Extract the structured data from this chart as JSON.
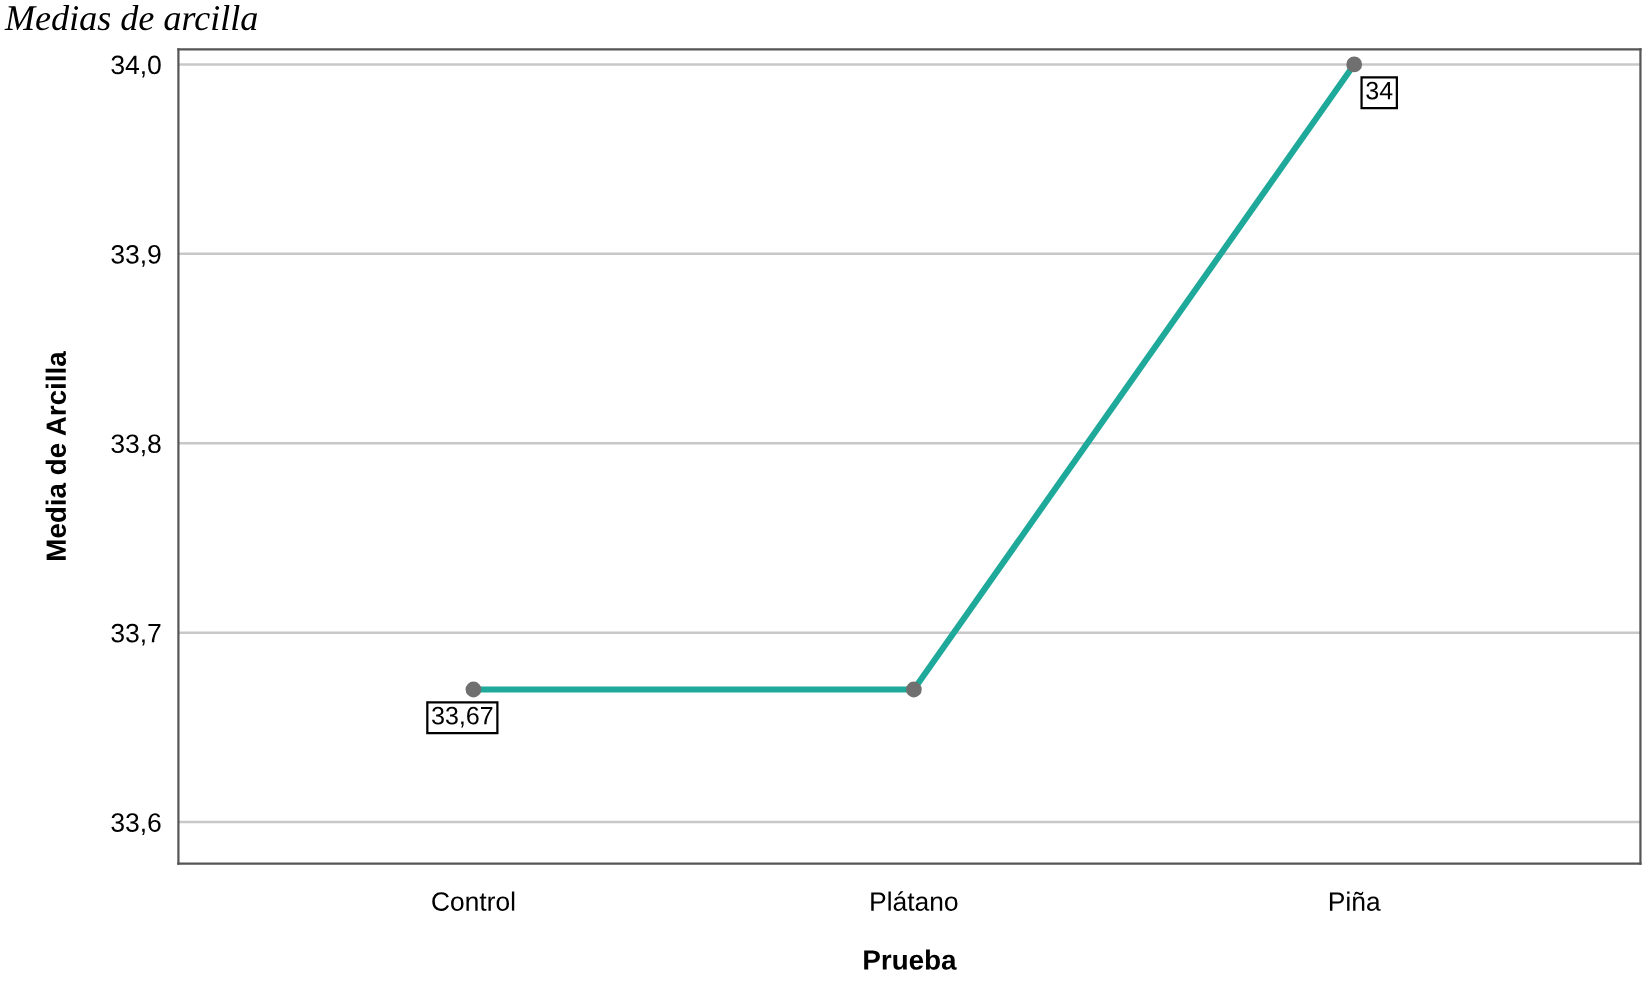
{
  "chart_data": {
    "type": "line",
    "title": "Medias de arcilla",
    "xlabel": "Prueba",
    "ylabel": "Media de Arcilla",
    "categories": [
      "Control",
      "Plátano",
      "Piña"
    ],
    "series": [
      {
        "color": "#1fa99a",
        "values": [
          33.67,
          33.67,
          34
        ],
        "value_labels": [
          "33,67",
          null,
          "34"
        ]
      }
    ],
    "ylim": [
      33.578,
      34.008
    ],
    "yticks": [
      {
        "value": 33.6,
        "label": "33,6"
      },
      {
        "value": 33.7,
        "label": "33,7"
      },
      {
        "value": 33.8,
        "label": "33,8"
      },
      {
        "value": 33.9,
        "label": "33,9"
      },
      {
        "value": 34.0,
        "label": "34,0"
      }
    ],
    "grid": "y",
    "marker": "circle",
    "line_style": "solid",
    "legend": false
  }
}
